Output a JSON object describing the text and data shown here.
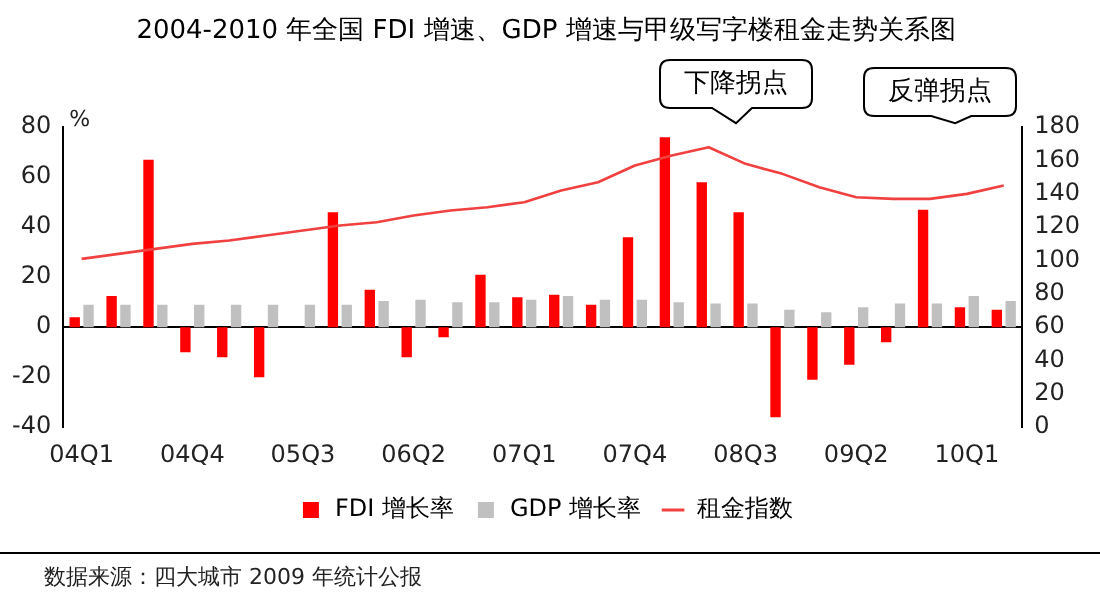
{
  "chart_data": {
    "type": "bar",
    "title": "2004-2010 年全国 FDI 增速、GDP 增速与甲级写字楼租金走势关系图",
    "categories": [
      "04Q1",
      null,
      null,
      "04Q4",
      null,
      null,
      "05Q3",
      null,
      null,
      "06Q2",
      null,
      null,
      "07Q1",
      null,
      null,
      "07Q4",
      null,
      null,
      "08Q3",
      null,
      null,
      "09Q2",
      null,
      null,
      "10Q1",
      null
    ],
    "series": [
      {
        "name": "FDI 增长率",
        "color": "#ff0000",
        "values": [
          4,
          12.5,
          67,
          -10,
          -12,
          -20,
          0,
          46,
          15,
          -12,
          -4,
          21,
          12,
          13,
          9,
          36,
          76,
          58,
          46,
          -36,
          -21,
          -15,
          -6,
          47,
          8,
          7
        ]
      },
      {
        "name": "GDP 增长率",
        "color": "#c0c0c0",
        "values": [
          9,
          9,
          9,
          9,
          9,
          9,
          9,
          9,
          10.5,
          11,
          10,
          10,
          11,
          12.5,
          11,
          11,
          10,
          9.5,
          9.5,
          7,
          6,
          8,
          9.5,
          9.5,
          12.5,
          10.5
        ]
      },
      {
        "name": "租金指数",
        "type": "line",
        "axis": "y2",
        "color": "#f04040",
        "values": [
          101,
          104,
          107,
          110,
          112,
          115,
          118,
          121,
          123,
          127,
          130,
          132,
          135,
          142,
          147,
          157,
          163,
          168,
          158,
          152,
          144,
          138,
          137,
          137,
          140,
          145
        ]
      }
    ],
    "ylabel": "%",
    "ylim": [
      -40,
      80
    ],
    "yticks": [
      -40,
      -20,
      0,
      20,
      40,
      60,
      80
    ],
    "y2lim": [
      0,
      180
    ],
    "y2ticks": [
      0,
      20,
      40,
      60,
      80,
      100,
      120,
      140,
      160,
      180
    ],
    "legend": "bottom",
    "marker": "none",
    "annotations": [
      "下降拐点",
      "反弹拐点",
      "数据来源：四大城市 2009 年统计公报"
    ]
  }
}
